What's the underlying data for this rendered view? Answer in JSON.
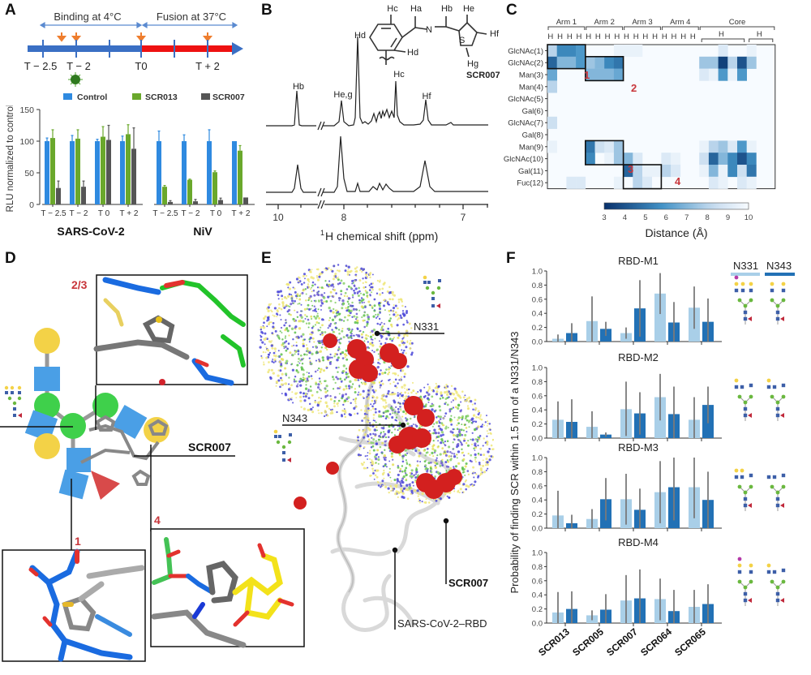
{
  "panels": {
    "A": {
      "label": "A",
      "timeline": {
        "binding_label": "Binding at 4°C",
        "fusion_label": "Fusion at 37°C",
        "ticks": [
          "T − 2.5",
          "T − 2",
          "T0",
          "T + 2"
        ],
        "binding_color": "#3a6fc4",
        "fusion_color": "#ee1111",
        "arrow_color": "#ef7d2d"
      },
      "legend": [
        {
          "name": "Control",
          "color": "#2f8ae0"
        },
        {
          "name": "SCR013",
          "color": "#6aa82c"
        },
        {
          "name": "SCR007",
          "color": "#555555"
        }
      ],
      "ylabel": "RLU normalized to control",
      "yticks": [
        "0",
        "50",
        "100",
        "150"
      ],
      "groups": [
        {
          "title": "SARS-CoV-2",
          "categories": [
            "T − 2.5",
            "T − 2",
            "T 0",
            "T + 2"
          ]
        },
        {
          "title": "NiV",
          "categories": [
            "T − 2.5",
            "T − 2",
            "T 0",
            "T + 2"
          ]
        }
      ]
    },
    "B": {
      "label": "B",
      "compound": "SCR007",
      "peaks": {
        "Hb": "Hb",
        "Heg": "He,g",
        "Hd": "Hd",
        "Hc": "Hc",
        "Hf": "Hf"
      },
      "struct_labels": {
        "Ha": "Ha",
        "Hb": "Hb",
        "Hc": "Hc",
        "Hd": "Hd",
        "He": "He",
        "Hf": "Hf",
        "Hg": "Hg",
        "N": "N",
        "S": "S"
      },
      "xticks": [
        "10",
        "8",
        "7"
      ],
      "xlabel_sup": "1",
      "xlabel": "H chemical shift (ppm)"
    },
    "C": {
      "label": "C",
      "groups": [
        "Arm 1",
        "Arm 2",
        "Arm 3",
        "Arm 4",
        "Core"
      ],
      "arm_cols": [
        "Hb",
        "Hg",
        "Hf",
        "He"
      ],
      "core_groups": [
        "Hd",
        "Hc"
      ],
      "rows": [
        "GlcNAc(1)",
        "GlcNAc(2)",
        "Man(3)",
        "Man(4)",
        "GlcNAc(5)",
        "Gal(6)",
        "GlcNAc(7)",
        "Gal(8)",
        "Man(9)",
        "GlcNAc(10)",
        "Gal(11)",
        "Fuc(12)"
      ],
      "box_labels": [
        "1",
        "2",
        "3",
        "4"
      ],
      "colorbar_ticks": [
        "3",
        "4",
        "5",
        "6",
        "7",
        "8",
        "9",
        "10"
      ],
      "colorbar_label": "Distance (Å)"
    },
    "D": {
      "label": "D",
      "inset_labels": [
        "2/3",
        "1",
        "4"
      ],
      "compound_label": "SCR007"
    },
    "E": {
      "label": "E",
      "site1": "N331",
      "site2": "N343",
      "compound_label": "SCR007",
      "protein_label": "SARS-CoV-2–RBD"
    },
    "F": {
      "label": "F",
      "ylabel": "Probability of finding SCR within 1.5 nm of a N331/N343",
      "legend": [
        {
          "name": "N331",
          "color": "#a9cfe8"
        },
        {
          "name": "N343",
          "color": "#2271b5"
        }
      ],
      "yticks": [
        "0.0",
        "0.2",
        "0.4",
        "0.6",
        "0.8",
        "1.0"
      ],
      "subplots": [
        "RBD-M1",
        "RBD-M2",
        "RBD-M3",
        "RBD-M4"
      ],
      "categories": [
        "SCR013",
        "SCR005",
        "SCR007",
        "SCR064",
        "SCR065"
      ]
    }
  },
  "chart_data": [
    {
      "panel": "A",
      "type": "bar",
      "title": "",
      "ylabel": "RLU normalized to control",
      "ylim": [
        0,
        150
      ],
      "groups": [
        "SARS-CoV-2",
        "NiV"
      ],
      "categories": [
        "T − 2.5",
        "T − 2",
        "T 0",
        "T + 2"
      ],
      "series": [
        {
          "name": "Control",
          "SARS-CoV-2": [
            100,
            100,
            100,
            100
          ],
          "NiV": [
            100,
            100,
            100,
            100
          ],
          "err_SARS-CoV-2": [
            5,
            9,
            3,
            8
          ],
          "err_NiV": [
            16,
            10,
            18,
            0
          ]
        },
        {
          "name": "SCR013",
          "SARS-CoV-2": [
            105,
            104,
            107,
            111
          ],
          "NiV": [
            28,
            39,
            51,
            85
          ],
          "err_SARS-CoV-2": [
            13,
            14,
            16,
            15
          ],
          "err_NiV": [
            2,
            1,
            2,
            8
          ]
        },
        {
          "name": "SCR007",
          "SARS-CoV-2": [
            26,
            28,
            102,
            88
          ],
          "NiV": [
            4,
            5,
            7,
            11
          ],
          "err_SARS-CoV-2": [
            11,
            9,
            23,
            33
          ],
          "err_NiV": [
            2,
            3,
            3,
            0
          ]
        }
      ],
      "legend_position": "top"
    },
    {
      "panel": "B",
      "type": "line",
      "title": "1H NMR spectra of SCR007 (free vs. glycan-bound)",
      "xlabel": "1H chemical shift (ppm)",
      "xticks": [
        10,
        8,
        7
      ],
      "x_reversed": true,
      "annotations": [
        "Hb",
        "He,g",
        "Hd",
        "Hc",
        "Hf"
      ]
    },
    {
      "panel": "C",
      "type": "heatmap",
      "title": "",
      "colorbar_label": "Distance (Å)",
      "colorbar_range": [
        3,
        10
      ],
      "rows": [
        "GlcNAc(1)",
        "GlcNAc(2)",
        "Man(3)",
        "Man(4)",
        "GlcNAc(5)",
        "Gal(6)",
        "GlcNAc(7)",
        "Gal(8)",
        "Man(9)",
        "GlcNAc(10)",
        "Gal(11)",
        "Fuc(12)"
      ],
      "columns": [
        "A1-Hb",
        "A1-Hg",
        "A1-Hf",
        "A1-He",
        "A2-Hb",
        "A2-Hg",
        "A2-Hf",
        "A2-He",
        "A3-Hb",
        "A3-Hg",
        "A3-Hf",
        "A3-He",
        "A4-Hb",
        "A4-Hg",
        "A4-Hf",
        "A4-He",
        "Hd1",
        "Hd2",
        "Hd3",
        "Hd4",
        "Hd5",
        "Hc1",
        "Hc2",
        "Hc3"
      ],
      "values": [
        [
          8,
          5.5,
          5.5,
          6,
          10,
          10,
          10,
          9.5,
          9.5,
          9.5,
          10,
          10,
          10,
          10,
          10,
          10,
          10,
          10,
          9,
          10,
          10,
          9.5,
          10,
          10
        ],
        [
          4.5,
          7,
          7,
          6,
          7.5,
          7,
          5.5,
          5,
          10,
          10,
          10,
          10,
          10,
          10,
          10,
          10,
          7.5,
          7.5,
          3.5,
          8,
          4,
          7.5,
          10,
          10
        ],
        [
          6.5,
          10,
          10,
          10,
          7,
          7,
          7,
          6.5,
          10,
          10,
          10,
          10,
          10,
          10,
          10,
          10,
          9,
          9.5,
          6,
          9.5,
          6,
          10,
          10,
          10
        ],
        [
          8,
          10,
          10,
          10,
          10,
          10,
          10,
          10,
          10,
          10,
          10,
          10,
          10,
          10,
          10,
          10,
          10,
          10,
          10,
          10,
          10,
          10,
          10,
          10
        ],
        [
          10,
          10,
          10,
          10,
          10,
          10,
          10,
          10,
          10,
          10,
          10,
          10,
          10,
          10,
          10,
          10,
          10,
          10,
          10,
          10,
          10,
          10,
          10,
          10
        ],
        [
          10,
          10,
          10,
          10,
          10,
          10,
          10,
          10,
          10,
          10,
          10,
          10,
          10,
          10,
          10,
          10,
          10,
          10,
          10,
          10,
          10,
          10,
          10,
          10
        ],
        [
          8.5,
          10,
          10,
          10,
          10,
          10,
          10,
          10,
          10,
          10,
          10,
          10,
          10,
          10,
          10,
          10,
          10,
          10,
          10,
          10,
          10,
          10,
          10,
          10
        ],
        [
          10,
          10,
          10,
          10,
          10,
          10,
          10,
          10,
          10,
          10,
          10,
          10,
          10,
          10,
          10,
          10,
          10,
          10,
          10,
          10,
          10,
          10,
          10,
          10
        ],
        [
          9.5,
          10,
          10,
          10,
          5,
          8.5,
          9,
          7.5,
          10,
          10,
          10,
          10,
          10,
          10,
          10,
          10,
          9.5,
          8,
          7.5,
          9,
          6,
          9.5,
          10,
          10
        ],
        [
          10,
          10,
          10,
          10,
          5.5,
          10,
          9.5,
          7.5,
          7,
          9,
          10,
          10,
          9,
          9.5,
          10,
          10,
          8.5,
          4.5,
          7,
          5.5,
          4,
          5.5,
          10,
          10
        ],
        [
          10,
          10,
          10,
          10,
          10,
          10,
          10,
          10,
          4.5,
          8,
          9.5,
          9.5,
          8,
          9,
          10,
          10,
          9.5,
          7,
          9.5,
          5.5,
          8.5,
          5,
          10,
          10
        ],
        [
          10,
          10,
          9,
          9,
          10,
          10,
          10,
          9.5,
          10,
          8,
          9,
          10,
          10,
          10,
          10,
          10,
          10,
          9,
          9.5,
          10,
          9,
          9.5,
          10,
          10
        ]
      ],
      "boxes": [
        {
          "label": "1",
          "rows": [
            0,
            1
          ],
          "cols": [
            0,
            3
          ]
        },
        {
          "label": "2",
          "rows": [
            1,
            2
          ],
          "cols": [
            4,
            7
          ]
        },
        {
          "label": "3",
          "rows": [
            8,
            9
          ],
          "cols": [
            4,
            7
          ]
        },
        {
          "label": "4",
          "rows": [
            10,
            11
          ],
          "cols": [
            8,
            11
          ]
        }
      ]
    },
    {
      "panel": "F",
      "type": "bar",
      "ylabel": "Probability of finding SCR within 1.5 nm of a N331/N343",
      "ylim": [
        0,
        1.0
      ],
      "categories": [
        "SCR013",
        "SCR005",
        "SCR007",
        "SCR064",
        "SCR065"
      ],
      "subplots": [
        {
          "title": "RBD-M1",
          "series": [
            {
              "name": "N331",
              "values": [
                0.04,
                0.29,
                0.12,
                0.68,
                0.48
              ],
              "err_hi": [
                0.1,
                0.64,
                0.2,
                0.97,
                0.78
              ],
              "err_lo": [
                0.0,
                0.0,
                0.04,
                0.39,
                0.18
              ]
            },
            {
              "name": "N343",
              "values": [
                0.12,
                0.18,
                0.47,
                0.27,
                0.28
              ],
              "err_hi": [
                0.26,
                0.28,
                0.87,
                0.56,
                0.61
              ],
              "err_lo": [
                0.0,
                0.08,
                0.07,
                0.0,
                0.0
              ]
            }
          ]
        },
        {
          "title": "RBD-M2",
          "series": [
            {
              "name": "N331",
              "values": [
                0.26,
                0.16,
                0.41,
                0.58,
                0.26
              ],
              "err_hi": [
                0.52,
                0.38,
                0.8,
                0.91,
                0.58
              ],
              "err_lo": [
                0.0,
                0.0,
                0.03,
                0.25,
                0.0
              ]
            },
            {
              "name": "N343",
              "values": [
                0.23,
                0.05,
                0.35,
                0.34,
                0.47
              ],
              "err_hi": [
                0.55,
                0.08,
                0.65,
                0.73,
                0.73
              ],
              "err_lo": [
                0.0,
                0.02,
                0.05,
                0.0,
                0.21
              ]
            }
          ]
        },
        {
          "title": "RBD-M3",
          "series": [
            {
              "name": "N331",
              "values": [
                0.18,
                0.13,
                0.41,
                0.51,
                0.58
              ],
              "err_hi": [
                0.53,
                0.27,
                0.77,
                0.95,
                1.0
              ],
              "err_lo": [
                0.0,
                0.0,
                0.05,
                0.07,
                0.14
              ]
            },
            {
              "name": "N343",
              "values": [
                0.07,
                0.41,
                0.26,
                0.58,
                0.4
              ],
              "err_hi": [
                0.19,
                0.71,
                0.56,
                1.0,
                0.8
              ],
              "err_lo": [
                0.0,
                0.11,
                0.0,
                0.11,
                0.0
              ]
            }
          ]
        },
        {
          "title": "RBD-M4",
          "series": [
            {
              "name": "N331",
              "values": [
                0.15,
                0.11,
                0.32,
                0.34,
                0.23
              ],
              "err_hi": [
                0.44,
                0.18,
                0.68,
                0.63,
                0.47
              ],
              "err_lo": [
                0.0,
                0.04,
                0.0,
                0.04,
                0.0
              ]
            },
            {
              "name": "N343",
              "values": [
                0.2,
                0.19,
                0.35,
                0.17,
                0.27
              ],
              "err_hi": [
                0.45,
                0.41,
                0.76,
                0.47,
                0.55
              ],
              "err_lo": [
                0.0,
                0.0,
                0.0,
                0.0,
                0.0
              ]
            }
          ]
        }
      ],
      "legend_position": "top-right"
    }
  ]
}
